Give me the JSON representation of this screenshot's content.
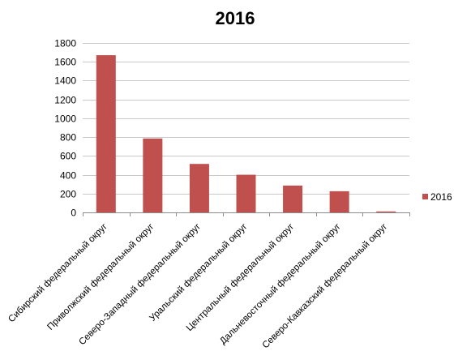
{
  "chart_data": {
    "type": "bar",
    "title": "2016",
    "xlabel": "",
    "ylabel": "",
    "categories": [
      "Сибирский федеральный округ",
      "Приволжский федеральный округ",
      "Северо-Западный федеральный округ",
      "Уральский федеральный округ",
      "Центральный федеральный округ",
      "Дальневосточный федеральный округ",
      "Северо-Кавказский федеральный округ"
    ],
    "series": [
      {
        "name": "2016",
        "values": [
          1670,
          785,
          515,
          400,
          285,
          225,
          10
        ],
        "color": "#c0504d"
      }
    ],
    "ylim": [
      0,
      1800
    ],
    "yticks": [
      0,
      200,
      400,
      600,
      800,
      1000,
      1200,
      1400,
      1600,
      1800
    ],
    "grid": true,
    "legend_position": "right"
  }
}
